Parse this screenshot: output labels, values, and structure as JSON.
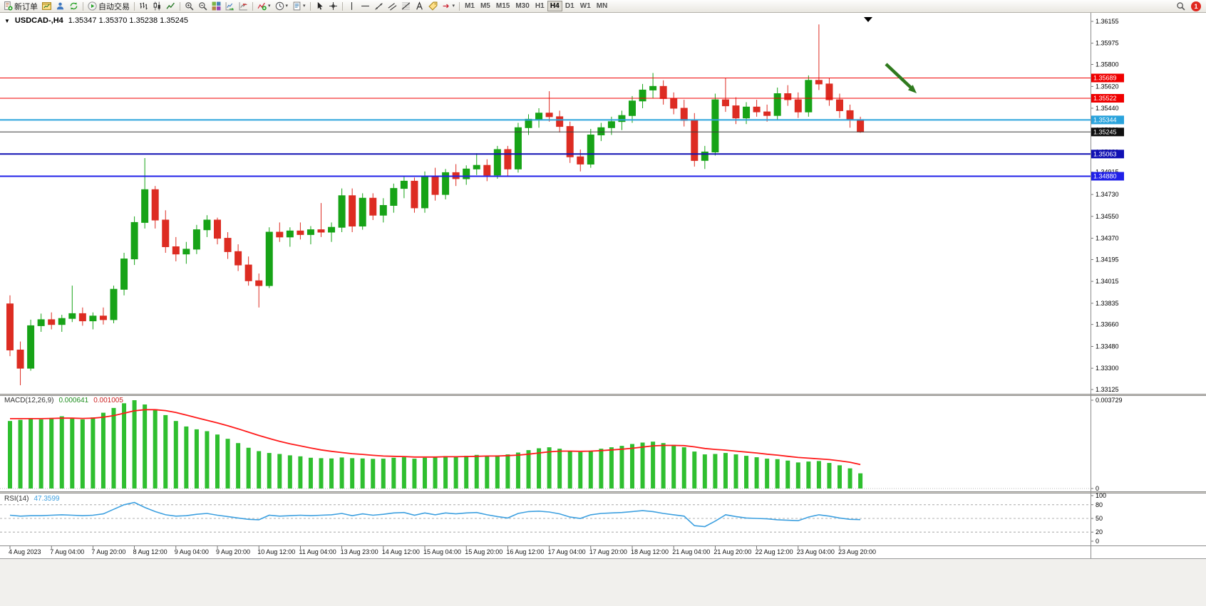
{
  "toolbar": {
    "groups": [
      [
        {
          "name": "new-order",
          "icon": "new-order",
          "label": "新订单"
        },
        {
          "name": "new-chart",
          "icon": "chart-window"
        },
        {
          "name": "market-watch",
          "icon": "market-watch"
        },
        {
          "name": "refresh",
          "icon": "refresh"
        }
      ],
      [
        {
          "name": "auto-trading",
          "icon": "autotrade",
          "label": "自动交易"
        }
      ],
      [
        {
          "name": "bar-chart-mode",
          "icon": "bars-chart"
        },
        {
          "name": "candlestick-mode",
          "icon": "candles-chart"
        },
        {
          "name": "line-chart-mode",
          "icon": "line-chart"
        }
      ],
      [
        {
          "name": "zoom-in",
          "icon": "zoom-in"
        },
        {
          "name": "zoom-out",
          "icon": "zoom-out"
        },
        {
          "name": "tile-windows",
          "icon": "tile-windows"
        },
        {
          "name": "auto-scroll",
          "icon": "auto-scroll"
        },
        {
          "name": "chart-shift",
          "icon": "chart-shift"
        }
      ],
      [
        {
          "name": "indicators",
          "icon": "indicators",
          "caret": true
        },
        {
          "name": "periods",
          "icon": "periods",
          "caret": true
        },
        {
          "name": "templates",
          "icon": "templates",
          "caret": true
        }
      ],
      [
        {
          "name": "cursor-tool",
          "icon": "cursor"
        },
        {
          "name": "crosshair-tool",
          "icon": "crosshair"
        }
      ],
      [
        {
          "name": "vertical-line-tool",
          "icon": "vline"
        },
        {
          "name": "horizontal-line-tool",
          "icon": "hline"
        },
        {
          "name": "trendline-tool",
          "icon": "trendline"
        },
        {
          "name": "channel-tool",
          "icon": "channel"
        },
        {
          "name": "fibonacci-tool",
          "icon": "fibo"
        },
        {
          "name": "text-tool",
          "icon": "text"
        },
        {
          "name": "label-tool",
          "icon": "label-tag"
        },
        {
          "name": "arrows-tool",
          "icon": "arrows-tool",
          "caret": true
        }
      ]
    ],
    "timeframes": [
      "M1",
      "M5",
      "M15",
      "M30",
      "H1",
      "H4",
      "D1",
      "W1",
      "MN"
    ],
    "active_timeframe": "H4",
    "notification_count": "1"
  },
  "chart": {
    "collapse_glyph": "▼",
    "symbol": "USDCAD-,H4",
    "ohlc": "1.35347 1.35370 1.35238 1.35245",
    "up_color": "#17a317",
    "down_color": "#dd2c22",
    "price_axis": {
      "max": 1.36155,
      "min": 1.33125,
      "ticks": [
        "1.36155",
        "1.35975",
        "1.35800",
        "1.35620",
        "1.35440",
        "1.35260",
        "1.35080",
        "1.34915",
        "1.34730",
        "1.34550",
        "1.34370",
        "1.34195",
        "1.34015",
        "1.33835",
        "1.33660",
        "1.33480",
        "1.33300",
        "1.33125"
      ]
    },
    "levels": [
      {
        "label": "1.35689",
        "price": 1.35689,
        "color": "#f00000",
        "width": 1,
        "badge": "#f00000"
      },
      {
        "label": "1.35522",
        "price": 1.35522,
        "color": "#f00000",
        "width": 1,
        "badge": "#f00000"
      },
      {
        "label": "1.35344",
        "price": 1.35344,
        "color": "#2aa3dc",
        "width": 2,
        "badge": "#2aa3dc"
      },
      {
        "label": "1.35245",
        "price": 1.35245,
        "color": "#3c3c3c",
        "width": 1,
        "badge": "#101010"
      },
      {
        "label": "1.35063",
        "price": 1.35063,
        "color": "#1111b4",
        "width": 2,
        "badge": "#1111b4"
      },
      {
        "label": "1.34880",
        "price": 1.3488,
        "color": "#2020e8",
        "width": 2,
        "badge": "#2020e8"
      }
    ],
    "candles": [
      [
        1.3383,
        1.339,
        1.334,
        1.3345
      ],
      [
        1.3345,
        1.3352,
        1.3316,
        1.333
      ],
      [
        1.333,
        1.337,
        1.3328,
        1.3365
      ],
      [
        1.3365,
        1.3375,
        1.336,
        1.337
      ],
      [
        1.337,
        1.3376,
        1.3362,
        1.3366
      ],
      [
        1.3366,
        1.3374,
        1.336,
        1.3371
      ],
      [
        1.3371,
        1.3398,
        1.3368,
        1.3375
      ],
      [
        1.3375,
        1.338,
        1.3365,
        1.3369
      ],
      [
        1.3369,
        1.3376,
        1.3362,
        1.3373
      ],
      [
        1.3373,
        1.338,
        1.3366,
        1.337
      ],
      [
        1.337,
        1.3398,
        1.3367,
        1.3395
      ],
      [
        1.3395,
        1.3425,
        1.339,
        1.342
      ],
      [
        1.342,
        1.3455,
        1.3415,
        1.345
      ],
      [
        1.345,
        1.3503,
        1.3445,
        1.3477
      ],
      [
        1.3477,
        1.348,
        1.3445,
        1.3452
      ],
      [
        1.3452,
        1.346,
        1.3425,
        1.343
      ],
      [
        1.343,
        1.3438,
        1.3418,
        1.3424
      ],
      [
        1.3424,
        1.3434,
        1.3416,
        1.3428
      ],
      [
        1.3428,
        1.3448,
        1.3424,
        1.3444
      ],
      [
        1.3444,
        1.3456,
        1.3438,
        1.3452
      ],
      [
        1.3452,
        1.3454,
        1.3432,
        1.3437
      ],
      [
        1.3437,
        1.3442,
        1.342,
        1.3426
      ],
      [
        1.3426,
        1.3432,
        1.341,
        1.3415
      ],
      [
        1.3415,
        1.3422,
        1.3398,
        1.3402
      ],
      [
        1.3402,
        1.3408,
        1.338,
        1.3398
      ],
      [
        1.3398,
        1.3446,
        1.3396,
        1.3442
      ],
      [
        1.3442,
        1.345,
        1.3434,
        1.3438
      ],
      [
        1.3438,
        1.3446,
        1.343,
        1.3443
      ],
      [
        1.3443,
        1.345,
        1.3436,
        1.344
      ],
      [
        1.344,
        1.3447,
        1.3432,
        1.3444
      ],
      [
        1.3444,
        1.3466,
        1.3438,
        1.3442
      ],
      [
        1.3442,
        1.345,
        1.3434,
        1.3446
      ],
      [
        1.3446,
        1.3478,
        1.3442,
        1.3472
      ],
      [
        1.3472,
        1.3478,
        1.3442,
        1.3447
      ],
      [
        1.3447,
        1.3474,
        1.3444,
        1.347
      ],
      [
        1.347,
        1.3474,
        1.3452,
        1.3456
      ],
      [
        1.3456,
        1.347,
        1.345,
        1.3464
      ],
      [
        1.3464,
        1.3482,
        1.3458,
        1.3478
      ],
      [
        1.3478,
        1.3488,
        1.347,
        1.3484
      ],
      [
        1.3484,
        1.3487,
        1.3458,
        1.3462
      ],
      [
        1.3462,
        1.3492,
        1.3458,
        1.3488
      ],
      [
        1.3488,
        1.3495,
        1.3468,
        1.3473
      ],
      [
        1.3473,
        1.3494,
        1.3469,
        1.3491
      ],
      [
        1.3491,
        1.3498,
        1.348,
        1.3486
      ],
      [
        1.3486,
        1.3497,
        1.3481,
        1.3494
      ],
      [
        1.3494,
        1.3507,
        1.3489,
        1.3497
      ],
      [
        1.3497,
        1.3502,
        1.3484,
        1.3489
      ],
      [
        1.3489,
        1.3513,
        1.3486,
        1.351
      ],
      [
        1.351,
        1.3513,
        1.3488,
        1.3494
      ],
      [
        1.3494,
        1.3532,
        1.3491,
        1.3528
      ],
      [
        1.3528,
        1.3539,
        1.3522,
        1.3535
      ],
      [
        1.3535,
        1.3544,
        1.3528,
        1.354
      ],
      [
        1.354,
        1.3558,
        1.3533,
        1.3537
      ],
      [
        1.3537,
        1.3542,
        1.3524,
        1.3529
      ],
      [
        1.3529,
        1.3533,
        1.3499,
        1.3504
      ],
      [
        1.3504,
        1.351,
        1.3492,
        1.3498
      ],
      [
        1.3498,
        1.3527,
        1.3495,
        1.3522
      ],
      [
        1.3522,
        1.3532,
        1.3517,
        1.3528
      ],
      [
        1.3528,
        1.3537,
        1.3522,
        1.3533
      ],
      [
        1.3533,
        1.3542,
        1.3526,
        1.3538
      ],
      [
        1.3538,
        1.3554,
        1.3532,
        1.355
      ],
      [
        1.355,
        1.3564,
        1.3544,
        1.3559
      ],
      [
        1.3559,
        1.3573,
        1.3552,
        1.3562
      ],
      [
        1.3562,
        1.3567,
        1.3547,
        1.3552
      ],
      [
        1.3552,
        1.3557,
        1.3539,
        1.3544
      ],
      [
        1.3544,
        1.3551,
        1.3529,
        1.3534
      ],
      [
        1.3534,
        1.354,
        1.3496,
        1.3501
      ],
      [
        1.3501,
        1.3513,
        1.3494,
        1.3508
      ],
      [
        1.3508,
        1.3556,
        1.3505,
        1.3551
      ],
      [
        1.3551,
        1.3569,
        1.3541,
        1.3546
      ],
      [
        1.3546,
        1.3553,
        1.3531,
        1.3536
      ],
      [
        1.3536,
        1.3549,
        1.3531,
        1.3545
      ],
      [
        1.3545,
        1.3551,
        1.3537,
        1.3541
      ],
      [
        1.3541,
        1.3547,
        1.3533,
        1.3538
      ],
      [
        1.3538,
        1.3561,
        1.3534,
        1.3556
      ],
      [
        1.3556,
        1.3563,
        1.3546,
        1.3551
      ],
      [
        1.3551,
        1.3557,
        1.3536,
        1.3541
      ],
      [
        1.3541,
        1.3571,
        1.3537,
        1.3567
      ],
      [
        1.3567,
        1.3613,
        1.3559,
        1.3564
      ],
      [
        1.3564,
        1.3569,
        1.3546,
        1.3551
      ],
      [
        1.3551,
        1.3556,
        1.3536,
        1.3542
      ],
      [
        1.3542,
        1.3547,
        1.3528,
        1.35347
      ],
      [
        1.35347,
        1.3537,
        1.35238,
        1.35245
      ]
    ]
  },
  "macd": {
    "name": "MACD(12,26,9)",
    "main_value": "0.000641",
    "signal_value": "0.001005",
    "axis_max": "0.003729",
    "axis_zero": "0",
    "bar_color": "#2fbf2f",
    "signal_color": "#ff1a1a",
    "histogram": [
      0.00285,
      0.0029,
      0.00295,
      0.00292,
      0.00298,
      0.00305,
      0.00298,
      0.00292,
      0.003,
      0.0032,
      0.0034,
      0.0036,
      0.00373,
      0.00355,
      0.00335,
      0.0031,
      0.00285,
      0.00262,
      0.0025,
      0.00242,
      0.00228,
      0.0021,
      0.00192,
      0.00172,
      0.00158,
      0.0015,
      0.00146,
      0.0014,
      0.00136,
      0.0013,
      0.00128,
      0.00127,
      0.00131,
      0.00128,
      0.00127,
      0.00125,
      0.00126,
      0.0013,
      0.00132,
      0.00126,
      0.0013,
      0.00134,
      0.00137,
      0.00136,
      0.00138,
      0.00142,
      0.00138,
      0.0014,
      0.00144,
      0.00152,
      0.00162,
      0.0017,
      0.00174,
      0.00168,
      0.00158,
      0.00154,
      0.0016,
      0.00168,
      0.00174,
      0.0018,
      0.00188,
      0.00194,
      0.00198,
      0.00192,
      0.00184,
      0.00174,
      0.00156,
      0.00144,
      0.00146,
      0.0015,
      0.00144,
      0.00138,
      0.00132,
      0.00126,
      0.00124,
      0.00118,
      0.0011,
      0.00114,
      0.00116,
      0.00108,
      0.00098,
      0.00085,
      0.00064
    ],
    "signal": [
      0.00295,
      0.00295,
      0.00295,
      0.00295,
      0.00296,
      0.00297,
      0.00297,
      0.00296,
      0.00297,
      0.00301,
      0.00308,
      0.00318,
      0.00328,
      0.00333,
      0.00333,
      0.00329,
      0.00321,
      0.0031,
      0.00299,
      0.00288,
      0.00277,
      0.00265,
      0.00252,
      0.00238,
      0.00224,
      0.00211,
      0.00199,
      0.00189,
      0.0018,
      0.00171,
      0.00163,
      0.00157,
      0.00152,
      0.00147,
      0.00144,
      0.0014,
      0.00137,
      0.00136,
      0.00135,
      0.00133,
      0.00133,
      0.00133,
      0.00134,
      0.00134,
      0.00135,
      0.00136,
      0.00137,
      0.00137,
      0.00139,
      0.00141,
      0.00145,
      0.0015,
      0.00155,
      0.00158,
      0.00158,
      0.00157,
      0.00158,
      0.0016,
      0.00163,
      0.00166,
      0.0017,
      0.00175,
      0.0018,
      0.00182,
      0.00182,
      0.00181,
      0.00176,
      0.00169,
      0.00165,
      0.00162,
      0.00158,
      0.00154,
      0.0015,
      0.00145,
      0.00141,
      0.00136,
      0.00131,
      0.00128,
      0.00125,
      0.00122,
      0.00117,
      0.00111,
      0.00101
    ]
  },
  "rsi": {
    "name": "RSI(14)",
    "value": "47.3599",
    "line_color": "#3da0e0",
    "levels": [
      80,
      50,
      20
    ],
    "axis_labels": [
      "100",
      "80",
      "50",
      "20",
      "0"
    ],
    "values": [
      57,
      55,
      56,
      56,
      57,
      58,
      57,
      56,
      57,
      60,
      70,
      80,
      85,
      74,
      65,
      58,
      55,
      56,
      59,
      61,
      57,
      54,
      51,
      48,
      47,
      57,
      55,
      56,
      57,
      56,
      57,
      58,
      61,
      56,
      60,
      57,
      59,
      62,
      63,
      57,
      62,
      58,
      62,
      60,
      62,
      63,
      58,
      54,
      51,
      61,
      65,
      66,
      64,
      60,
      53,
      50,
      58,
      61,
      62,
      63,
      65,
      67,
      65,
      61,
      58,
      55,
      34,
      32,
      44,
      58,
      54,
      51,
      50,
      49,
      47,
      46,
      45,
      53,
      58,
      55,
      51,
      48,
      47.36
    ]
  },
  "time_axis": {
    "labels": [
      {
        "i": 0,
        "t": "4 Aug 2023"
      },
      {
        "i": 4,
        "t": "7 Aug 04:00"
      },
      {
        "i": 8,
        "t": "7 Aug 20:00"
      },
      {
        "i": 12,
        "t": "8 Aug 12:00"
      },
      {
        "i": 16,
        "t": "9 Aug 04:00"
      },
      {
        "i": 20,
        "t": "9 Aug 20:00"
      },
      {
        "i": 24,
        "t": "10 Aug 12:00"
      },
      {
        "i": 28,
        "t": "11 Aug 04:00"
      },
      {
        "i": 32,
        "t": "13 Aug 23:00"
      },
      {
        "i": 36,
        "t": "14 Aug 12:00"
      },
      {
        "i": 40,
        "t": "15 Aug 04:00"
      },
      {
        "i": 44,
        "t": "15 Aug 20:00"
      },
      {
        "i": 48,
        "t": "16 Aug 12:00"
      },
      {
        "i": 52,
        "t": "17 Aug 04:00"
      },
      {
        "i": 56,
        "t": "17 Aug 20:00"
      },
      {
        "i": 60,
        "t": "18 Aug 12:00"
      },
      {
        "i": 64,
        "t": "21 Aug 04:00"
      },
      {
        "i": 68,
        "t": "21 Aug 20:00"
      },
      {
        "i": 72,
        "t": "22 Aug 12:00"
      },
      {
        "i": 76,
        "t": "23 Aug 04:00"
      },
      {
        "i": 80,
        "t": "23 Aug 20:00"
      }
    ]
  },
  "annotations": {
    "arrow_color": "#2f7a1e"
  }
}
